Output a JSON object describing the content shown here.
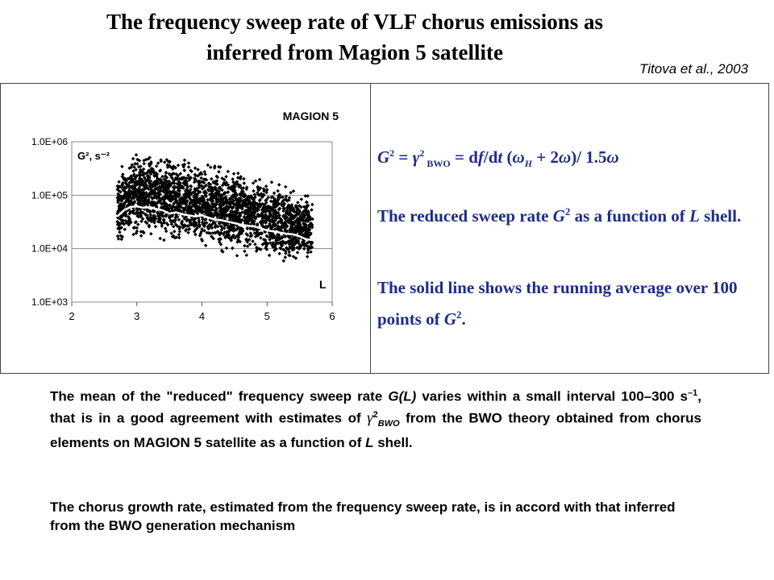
{
  "title": {
    "line1": "The frequency sweep rate of VLF chorus emissions as",
    "line2": "inferred from Magion 5  satellite"
  },
  "citation": "Titova et al., 2003",
  "right_panel": {
    "formula_G": "G",
    "formula_eq1": " = ",
    "formula_gamma": "γ",
    "formula_bwo": " BWO",
    "formula_eq2": " = d",
    "formula_f": "f",
    "formula_slash": "/d",
    "formula_t": "t",
    "formula_rest1": " (",
    "formula_omega_h": "ω",
    "formula_h": "H",
    "formula_rest2": " + 2",
    "formula_omega": "ω",
    "formula_rest3": ")/ 1.5",
    "formula_omega2": "ω",
    "sup2": "2",
    "text1_a": "The reduced sweep rate ",
    "text1_b": " as a function of ",
    "text1_L": "L",
    "text1_c": " shell.",
    "text2_a": "The solid line shows the running average over 100 points of ",
    "text2_b": "."
  },
  "paragraphs": {
    "p1_a": "The mean of the \"reduced\" frequency sweep rate ",
    "p1_G": "G(L)",
    "p1_b": " varies within a small interval 100–300 s",
    "p1_sup": "–1",
    "p1_c": ", that is in  a good agreement with estimates of  ",
    "p1_gamma": "γ",
    "p1_gsup": "2",
    "p1_bwo": "BWO",
    "p1_d": " from the BWO theory obtained from chorus elements on MAGION 5 satellite as a function of ",
    "p1_L": "L",
    "p1_e": " shell.",
    "p2": "The chorus growth rate, estimated from the frequency sweep rate, is in accord with that inferred from the BWO generation mechanism"
  },
  "chart_data": {
    "type": "scatter",
    "title": "MAGION 5",
    "ylabel": "G², s⁻²",
    "xlabel": "L",
    "x_ticks": [
      "2",
      "3",
      "4",
      "5",
      "6"
    ],
    "y_ticks": [
      "1.0E+03",
      "1.0E+04",
      "1.0E+05",
      "1.0E+06"
    ],
    "xlim": [
      2,
      6
    ],
    "ylim": [
      1000,
      1000000
    ],
    "y_scale": "log",
    "grid": "horizontal",
    "colors": {
      "points": "#000000",
      "running_average": "#ffffff"
    },
    "running_average": {
      "x": [
        2.7,
        2.8,
        2.9,
        3.0,
        3.1,
        3.2,
        3.3,
        3.4,
        3.5,
        3.6,
        3.7,
        3.8,
        3.9,
        4.0,
        4.1,
        4.2,
        4.3,
        4.4,
        4.5,
        4.6,
        4.7,
        4.8,
        4.9,
        5.0,
        5.1,
        5.2,
        5.3,
        5.4,
        5.5,
        5.6,
        5.7,
        5.8
      ],
      "y": [
        40000,
        52000,
        60000,
        62000,
        58000,
        60000,
        55000,
        52000,
        45000,
        48000,
        44000,
        42000,
        40000,
        42000,
        38000,
        35000,
        34000,
        32000,
        30000,
        28000,
        27000,
        26000,
        24000,
        22000,
        21000,
        20000,
        19000,
        18500,
        17000,
        15000,
        14500,
        14000
      ]
    },
    "scatter_envelope": {
      "x": [
        2.7,
        3.0,
        3.3,
        3.6,
        3.9,
        4.2,
        4.5,
        4.8,
        5.1,
        5.4,
        5.7
      ],
      "upper": [
        300000,
        700000,
        600000,
        500000,
        400000,
        350000,
        300000,
        220000,
        200000,
        120000,
        90000
      ],
      "lower": [
        5000,
        8000,
        7000,
        6000,
        6000,
        5000,
        4000,
        4000,
        3500,
        3000,
        3000
      ]
    }
  }
}
